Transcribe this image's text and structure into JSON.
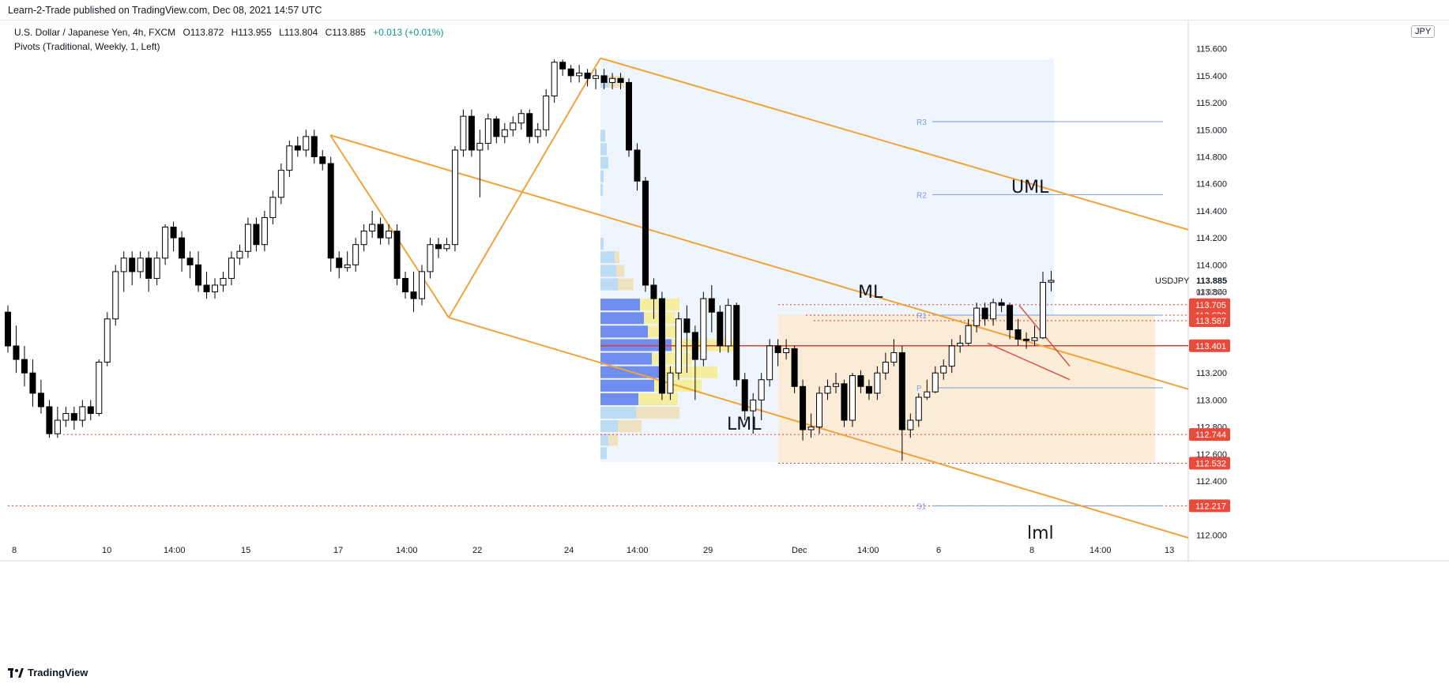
{
  "header": {
    "published": "Learn-2-Trade published on TradingView.com, Dec 08, 2021 14:57 UTC"
  },
  "legend": {
    "symbol": "U.S. Dollar / Japanese Yen, 4h, FXCM",
    "open": "O113.872",
    "high": "H113.955",
    "low": "L113.804",
    "close": "C113.885",
    "change": "+0.013 (+0.01%)",
    "indicator": "Pivots (Traditional, Weekly, 1, Left)"
  },
  "symbol_badge": "JPY",
  "footer": {
    "brand": "TradingView"
  },
  "colors": {
    "channel": "#f0a33c",
    "pivot": "#7b9be0",
    "support_line": "#e03c31",
    "price_tag": "#e84b3c",
    "profile_blue": "#6f8ef0",
    "profile_light_blue": "#bcdcf6",
    "profile_yellow": "#f4ee9e",
    "profile_beige": "#eee2c0",
    "range_box": "#fbead0",
    "profile_bg": "#eef5fd"
  },
  "chart_data": {
    "type": "candlestick",
    "ylim": [
      111.95,
      115.75
    ],
    "price_ticks": [
      112.0,
      112.2,
      112.4,
      112.6,
      112.8,
      113.0,
      113.2,
      113.4,
      113.6,
      113.8,
      114.0,
      114.2,
      114.4,
      114.6,
      114.8,
      115.0,
      115.2,
      115.4,
      115.6
    ],
    "time_labels": [
      "8",
      "10",
      "14:00",
      "15",
      "17",
      "14:00",
      "22",
      "24",
      "14:00",
      "29",
      "Dec",
      "14:00",
      "6",
      "8",
      "14:00",
      "13"
    ],
    "current_price": {
      "symbol": "USDJPY",
      "value": "113.885",
      "countdown": "03:02:43"
    },
    "price_tags": [
      "113.705",
      "113.628",
      "113.587",
      "113.401",
      "112.744",
      "112.532",
      "112.217"
    ],
    "pivots": [
      {
        "label": "R3",
        "value": 115.06
      },
      {
        "label": "R2",
        "value": 114.52
      },
      {
        "label": "R1",
        "value": 113.628
      },
      {
        "label": "P",
        "value": 113.09
      },
      {
        "label": "S1",
        "value": 112.217
      }
    ],
    "channel_labels": {
      "upper": "UML",
      "median": "ML",
      "lower": "LML",
      "bottom": "lml"
    },
    "candles": [
      [
        113.65,
        113.4,
        113.7,
        113.35
      ],
      [
        113.4,
        113.3,
        113.55,
        113.2
      ],
      [
        113.3,
        113.2,
        113.4,
        113.1
      ],
      [
        113.2,
        113.05,
        113.3,
        112.95
      ],
      [
        113.05,
        112.95,
        113.15,
        112.9
      ],
      [
        112.95,
        112.75,
        113.0,
        112.72
      ],
      [
        112.75,
        112.85,
        112.95,
        112.72
      ],
      [
        112.85,
        112.9,
        112.95,
        112.8
      ],
      [
        112.9,
        112.85,
        112.95,
        112.78
      ],
      [
        112.85,
        112.95,
        113.0,
        112.8
      ],
      [
        112.95,
        112.9,
        113.0,
        112.85
      ],
      [
        112.9,
        113.28,
        113.3,
        112.88
      ],
      [
        113.28,
        113.6,
        113.65,
        113.25
      ],
      [
        113.6,
        113.95,
        114.0,
        113.55
      ],
      [
        113.95,
        114.05,
        114.1,
        113.8
      ],
      [
        114.05,
        113.95,
        114.1,
        113.85
      ],
      [
        113.95,
        114.05,
        114.1,
        113.9
      ],
      [
        114.05,
        113.9,
        114.1,
        113.8
      ],
      [
        113.9,
        114.05,
        114.1,
        113.85
      ],
      [
        114.05,
        114.28,
        114.3,
        114.0
      ],
      [
        114.28,
        114.2,
        114.32,
        114.1
      ],
      [
        114.2,
        114.05,
        114.25,
        113.95
      ],
      [
        114.05,
        114.0,
        114.1,
        113.9
      ],
      [
        114.0,
        113.85,
        114.1,
        113.8
      ],
      [
        113.85,
        113.8,
        113.95,
        113.75
      ],
      [
        113.8,
        113.85,
        113.9,
        113.75
      ],
      [
        113.85,
        113.9,
        113.95,
        113.8
      ],
      [
        113.9,
        114.05,
        114.1,
        113.85
      ],
      [
        114.05,
        114.1,
        114.15,
        114.0
      ],
      [
        114.1,
        114.3,
        114.35,
        114.05
      ],
      [
        114.3,
        114.15,
        114.35,
        114.1
      ],
      [
        114.15,
        114.35,
        114.4,
        114.1
      ],
      [
        114.35,
        114.5,
        114.55,
        114.3
      ],
      [
        114.5,
        114.7,
        114.75,
        114.45
      ],
      [
        114.7,
        114.88,
        114.92,
        114.65
      ],
      [
        114.88,
        114.85,
        114.95,
        114.8
      ],
      [
        114.85,
        114.95,
        115.0,
        114.8
      ],
      [
        114.95,
        114.8,
        115.0,
        114.75
      ],
      [
        114.8,
        114.75,
        114.85,
        114.7
      ],
      [
        114.75,
        114.05,
        114.8,
        113.95
      ],
      [
        114.05,
        113.98,
        114.1,
        113.9
      ],
      [
        113.98,
        114.0,
        114.1,
        113.95
      ],
      [
        114.0,
        114.15,
        114.2,
        113.95
      ],
      [
        114.15,
        114.25,
        114.3,
        114.1
      ],
      [
        114.25,
        114.3,
        114.4,
        114.2
      ],
      [
        114.3,
        114.2,
        114.35,
        114.15
      ],
      [
        114.2,
        114.25,
        114.3,
        114.15
      ],
      [
        114.25,
        113.9,
        114.3,
        113.85
      ],
      [
        113.9,
        113.8,
        113.95,
        113.75
      ],
      [
        113.8,
        113.75,
        113.95,
        113.65
      ],
      [
        113.75,
        113.95,
        114.0,
        113.7
      ],
      [
        113.95,
        114.15,
        114.2,
        113.9
      ],
      [
        114.15,
        114.12,
        114.2,
        114.05
      ],
      [
        114.12,
        114.15,
        114.2,
        114.1
      ],
      [
        114.15,
        114.85,
        114.88,
        114.1
      ],
      [
        114.85,
        115.1,
        115.15,
        114.8
      ],
      [
        115.1,
        114.85,
        115.15,
        114.8
      ],
      [
        114.85,
        114.9,
        115.0,
        114.5
      ],
      [
        114.9,
        115.08,
        115.12,
        114.85
      ],
      [
        115.08,
        114.95,
        115.1,
        114.9
      ],
      [
        114.95,
        115.0,
        115.05,
        114.9
      ],
      [
        115.0,
        115.05,
        115.1,
        114.95
      ],
      [
        115.05,
        115.12,
        115.15,
        115.0
      ],
      [
        115.12,
        114.95,
        115.15,
        114.9
      ],
      [
        114.95,
        115.0,
        115.05,
        114.9
      ],
      [
        115.0,
        115.25,
        115.3,
        114.95
      ],
      [
        115.25,
        115.5,
        115.52,
        115.2
      ],
      [
        115.5,
        115.45,
        115.52,
        115.4
      ],
      [
        115.45,
        115.4,
        115.48,
        115.35
      ],
      [
        115.4,
        115.42,
        115.48,
        115.35
      ],
      [
        115.42,
        115.38,
        115.45,
        115.32
      ],
      [
        115.38,
        115.4,
        115.45,
        115.3
      ],
      [
        115.4,
        115.35,
        115.45,
        115.3
      ],
      [
        115.35,
        115.38,
        115.42,
        115.3
      ],
      [
        115.38,
        115.35,
        115.42,
        115.3
      ],
      [
        115.35,
        114.85,
        115.38,
        114.8
      ],
      [
        114.85,
        114.62,
        114.9,
        114.55
      ],
      [
        114.62,
        113.85,
        114.65,
        113.8
      ],
      [
        113.85,
        113.75,
        113.9,
        113.6
      ],
      [
        113.75,
        113.05,
        113.8,
        113.0
      ],
      [
        113.05,
        113.2,
        113.25,
        113.0
      ],
      [
        113.2,
        113.6,
        113.65,
        113.15
      ],
      [
        113.6,
        113.5,
        113.7,
        113.2
      ],
      [
        113.5,
        113.3,
        113.55,
        113.0
      ],
      [
        113.3,
        113.75,
        113.8,
        113.25
      ],
      [
        113.75,
        113.65,
        113.85,
        113.5
      ],
      [
        113.65,
        113.4,
        113.7,
        113.35
      ],
      [
        113.4,
        113.7,
        113.75,
        113.35
      ],
      [
        113.7,
        113.15,
        113.72,
        113.1
      ],
      [
        113.15,
        112.92,
        113.2,
        112.85
      ],
      [
        112.92,
        113.0,
        113.05,
        112.75
      ],
      [
        113.0,
        113.15,
        113.2,
        112.85
      ],
      [
        113.15,
        113.4,
        113.45,
        113.1
      ],
      [
        113.4,
        113.35,
        113.45,
        113.25
      ],
      [
        113.35,
        113.38,
        113.45,
        113.3
      ],
      [
        113.38,
        113.1,
        113.4,
        113.05
      ],
      [
        113.1,
        112.78,
        113.15,
        112.7
      ],
      [
        112.78,
        112.8,
        112.9,
        112.72
      ],
      [
        112.8,
        113.05,
        113.1,
        112.75
      ],
      [
        113.05,
        113.1,
        113.15,
        113.0
      ],
      [
        113.1,
        113.12,
        113.2,
        113.05
      ],
      [
        113.12,
        112.85,
        113.15,
        112.8
      ],
      [
        112.85,
        113.18,
        113.2,
        112.8
      ],
      [
        113.18,
        113.1,
        113.22,
        113.05
      ],
      [
        113.1,
        113.05,
        113.15,
        113.0
      ],
      [
        113.05,
        113.2,
        113.25,
        113.0
      ],
      [
        113.2,
        113.28,
        113.35,
        113.15
      ],
      [
        113.28,
        113.35,
        113.45,
        113.25
      ],
      [
        113.35,
        112.78,
        113.4,
        112.55
      ],
      [
        112.78,
        112.85,
        112.9,
        112.72
      ],
      [
        112.85,
        113.02,
        113.05,
        112.8
      ],
      [
        113.02,
        113.06,
        113.15,
        113.0
      ],
      [
        113.06,
        113.2,
        113.25,
        113.05
      ],
      [
        113.2,
        113.25,
        113.3,
        113.15
      ],
      [
        113.25,
        113.4,
        113.45,
        113.2
      ],
      [
        113.4,
        113.42,
        113.48,
        113.35
      ],
      [
        113.42,
        113.55,
        113.6,
        113.4
      ],
      [
        113.55,
        113.68,
        113.72,
        113.5
      ],
      [
        113.68,
        113.6,
        113.72,
        113.55
      ],
      [
        113.6,
        113.72,
        113.75,
        113.55
      ],
      [
        113.72,
        113.7,
        113.75,
        113.65
      ],
      [
        113.7,
        113.52,
        113.72,
        113.45
      ],
      [
        113.52,
        113.45,
        113.6,
        113.4
      ],
      [
        113.45,
        113.44,
        113.5,
        113.38
      ],
      [
        113.44,
        113.46,
        113.55,
        113.4
      ],
      [
        113.46,
        113.87,
        113.95,
        113.45
      ],
      [
        113.872,
        113.885,
        113.955,
        113.804
      ]
    ]
  }
}
